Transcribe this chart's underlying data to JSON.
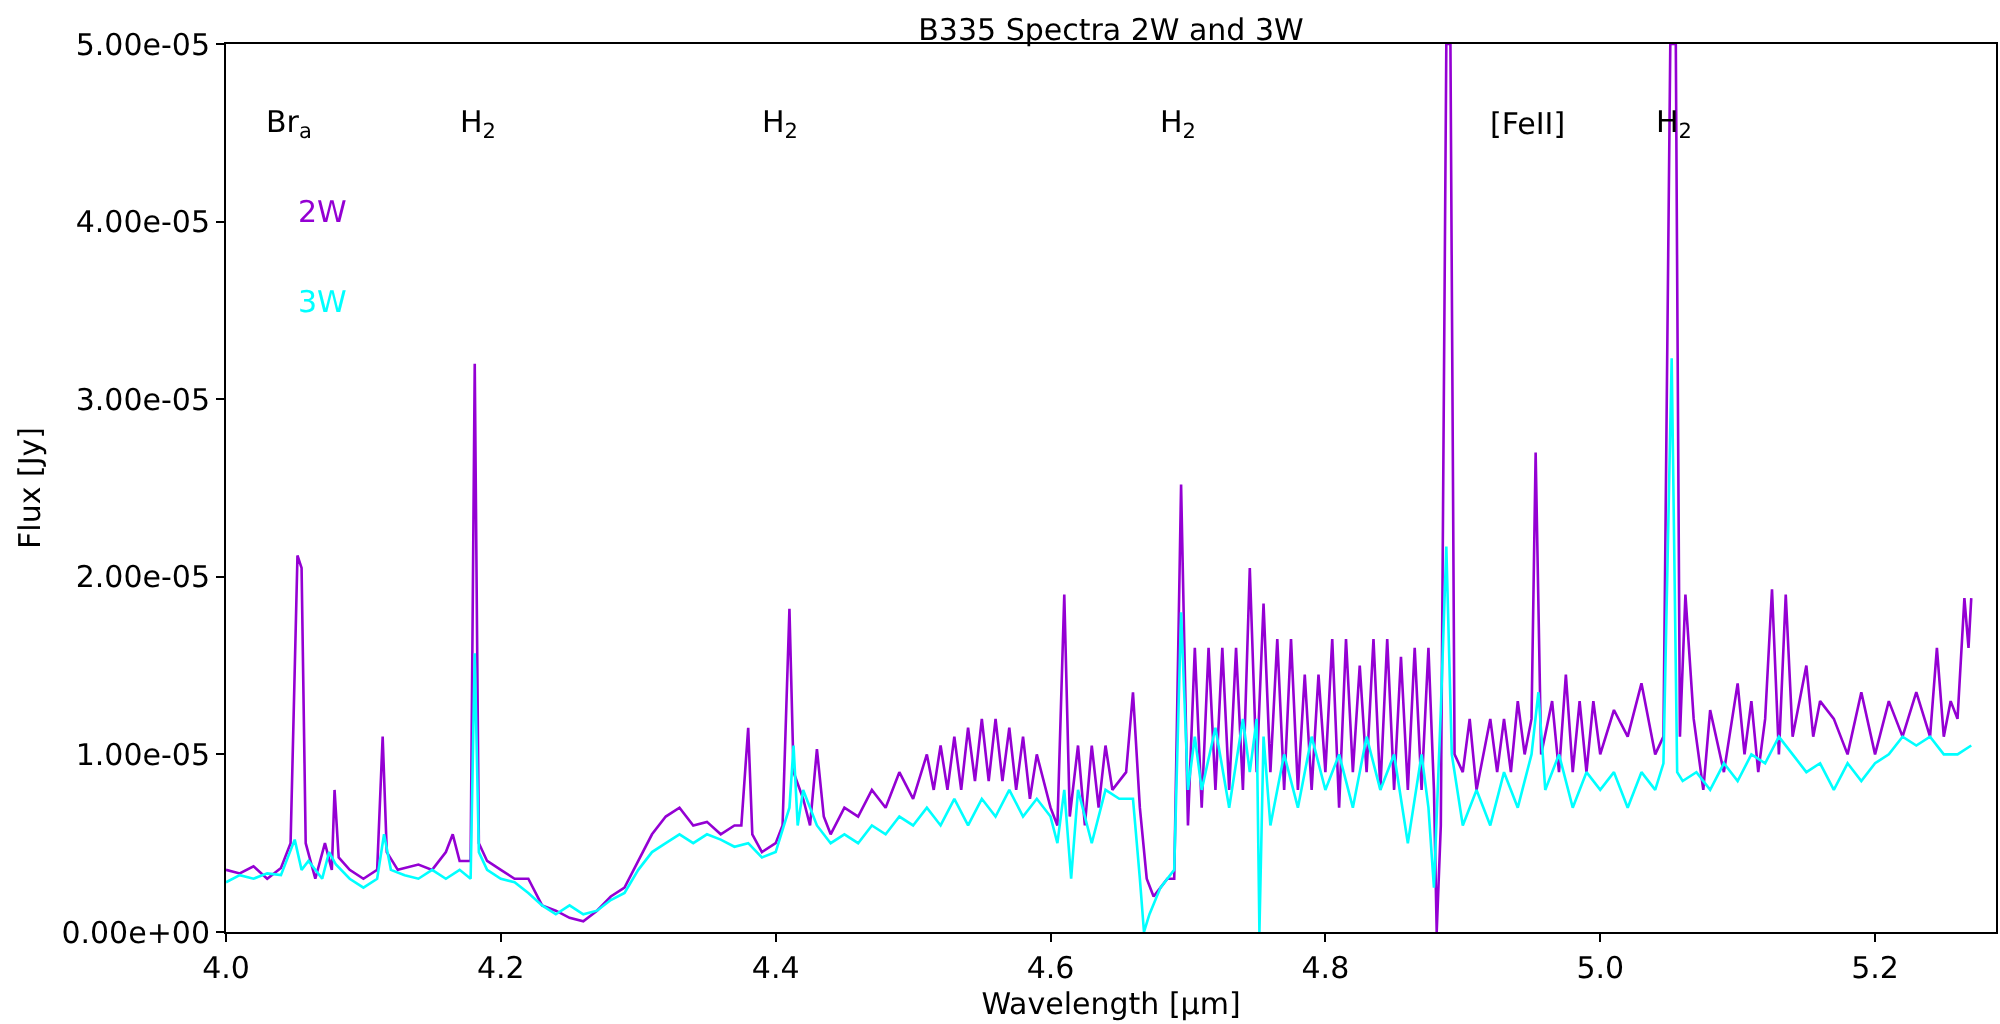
{
  "chart_data": {
    "type": "line",
    "title": "B335 Spectra 2W and 3W",
    "xlabel": "Wavelength [μm]",
    "ylabel": "Flux [Jy]",
    "xlim": [
      4.0,
      5.288
    ],
    "xticks": [
      {
        "value": 4.0,
        "label": "4.0"
      },
      {
        "value": 4.2,
        "label": "4.2"
      },
      {
        "value": 4.4,
        "label": "4.4"
      },
      {
        "value": 4.6,
        "label": "4.6"
      },
      {
        "value": 4.8,
        "label": "4.8"
      },
      {
        "value": 5.0,
        "label": "5.0"
      },
      {
        "value": 5.2,
        "label": "5.2"
      }
    ],
    "ylim": [
      0,
      5e-05
    ],
    "yticks": [
      {
        "value": 0,
        "label": "0.00e+00"
      },
      {
        "value": 1e-05,
        "label": "1.00e-05"
      },
      {
        "value": 2e-05,
        "label": "2.00e-05"
      },
      {
        "value": 3e-05,
        "label": "3.00e-05"
      },
      {
        "value": 4e-05,
        "label": "4.00e-05"
      },
      {
        "value": 5e-05,
        "label": "5.00e-05"
      }
    ],
    "legend": "top left",
    "marker": "none",
    "line_style": "solid",
    "annotations": [
      "Br$_{a}$",
      "H$_{2}$",
      "H$_{2}$",
      "H$_{2}$",
      "[FeII]",
      "H$_{2}$"
    ],
    "series": [
      {
        "name": "2W",
        "color": "#9400d3",
        "x": [
          4.0,
          4.01,
          4.02,
          4.03,
          4.04,
          4.047,
          4.052,
          4.055,
          4.058,
          4.065,
          4.072,
          4.077,
          4.079,
          4.082,
          4.09,
          4.1,
          4.11,
          4.114,
          4.117,
          4.125,
          4.14,
          4.15,
          4.16,
          4.165,
          4.17,
          4.178,
          4.181,
          4.184,
          4.19,
          4.2,
          4.21,
          4.22,
          4.23,
          4.24,
          4.25,
          4.26,
          4.27,
          4.28,
          4.29,
          4.3,
          4.31,
          4.32,
          4.33,
          4.34,
          4.35,
          4.36,
          4.37,
          4.375,
          4.38,
          4.383,
          4.39,
          4.4,
          4.405,
          4.41,
          4.413,
          4.42,
          4.425,
          4.43,
          4.435,
          4.44,
          4.45,
          4.46,
          4.47,
          4.48,
          4.49,
          4.5,
          4.51,
          4.515,
          4.52,
          4.525,
          4.53,
          4.535,
          4.54,
          4.545,
          4.55,
          4.555,
          4.56,
          4.565,
          4.57,
          4.575,
          4.58,
          4.585,
          4.59,
          4.6,
          4.605,
          4.61,
          4.614,
          4.62,
          4.625,
          4.63,
          4.635,
          4.64,
          4.645,
          4.655,
          4.66,
          4.665,
          4.67,
          4.675,
          4.68,
          4.685,
          4.69,
          4.695,
          4.7,
          4.705,
          4.71,
          4.715,
          4.72,
          4.725,
          4.73,
          4.735,
          4.74,
          4.745,
          4.75,
          4.755,
          4.76,
          4.765,
          4.77,
          4.775,
          4.78,
          4.785,
          4.79,
          4.795,
          4.8,
          4.805,
          4.81,
          4.815,
          4.82,
          4.825,
          4.83,
          4.835,
          4.84,
          4.845,
          4.85,
          4.855,
          4.86,
          4.865,
          4.87,
          4.875,
          4.879,
          4.881,
          4.884,
          4.888,
          4.891,
          4.894,
          4.9,
          4.905,
          4.91,
          4.92,
          4.925,
          4.93,
          4.935,
          4.94,
          4.945,
          4.95,
          4.953,
          4.957,
          4.965,
          4.97,
          4.975,
          4.98,
          4.985,
          4.99,
          4.995,
          5.0,
          5.01,
          5.02,
          5.03,
          5.04,
          5.046,
          5.051,
          5.055,
          5.058,
          5.062,
          5.068,
          5.075,
          5.08,
          5.09,
          5.1,
          5.105,
          5.11,
          5.115,
          5.12,
          5.125,
          5.13,
          5.135,
          5.14,
          5.15,
          5.155,
          5.16,
          5.17,
          5.18,
          5.19,
          5.2,
          5.21,
          5.22,
          5.23,
          5.24,
          5.245,
          5.25,
          5.255,
          5.26,
          5.265,
          5.268,
          5.27
        ],
        "values": [
          3.5e-06,
          3.3e-06,
          3.7e-06,
          3e-06,
          3.6e-06,
          5e-06,
          2.12e-05,
          2.05e-05,
          5e-06,
          3e-06,
          5e-06,
          3.5e-06,
          8e-06,
          4.2e-06,
          3.5e-06,
          3e-06,
          3.5e-06,
          1.1e-05,
          4.5e-06,
          3.5e-06,
          3.8e-06,
          3.5e-06,
          4.5e-06,
          5.5e-06,
          4e-06,
          4e-06,
          3.2e-05,
          5e-06,
          4e-06,
          3.5e-06,
          3e-06,
          3e-06,
          1.5e-06,
          1.2e-06,
          8e-07,
          6e-07,
          1.2e-06,
          2e-06,
          2.5e-06,
          4e-06,
          5.5e-06,
          6.5e-06,
          7e-06,
          6e-06,
          6.2e-06,
          5.5e-06,
          6e-06,
          6e-06,
          1.15e-05,
          5.5e-06,
          4.5e-06,
          5e-06,
          6e-06,
          1.82e-05,
          9e-06,
          7.5e-06,
          6e-06,
          1.03e-05,
          6.5e-06,
          5.5e-06,
          7e-06,
          6.5e-06,
          8e-06,
          7e-06,
          9e-06,
          7.5e-06,
          1e-05,
          8e-06,
          1.05e-05,
          8e-06,
          1.1e-05,
          8e-06,
          1.15e-05,
          8.5e-06,
          1.2e-05,
          8.5e-06,
          1.2e-05,
          8.5e-06,
          1.15e-05,
          8e-06,
          1.1e-05,
          7.5e-06,
          1e-05,
          7e-06,
          6e-06,
          1.9e-05,
          6.5e-06,
          1.05e-05,
          6e-06,
          1.05e-05,
          7e-06,
          1.05e-05,
          8e-06,
          9e-06,
          1.35e-05,
          7e-06,
          3e-06,
          2e-06,
          2.5e-06,
          3e-06,
          3e-06,
          2.52e-05,
          6e-06,
          1.6e-05,
          7e-06,
          1.6e-05,
          8e-06,
          1.6e-05,
          8e-06,
          1.6e-05,
          8e-06,
          2.05e-05,
          9e-06,
          1.85e-05,
          9e-06,
          1.65e-05,
          8e-06,
          1.65e-05,
          8e-06,
          1.45e-05,
          8e-06,
          1.45e-05,
          9e-06,
          1.65e-05,
          7e-06,
          1.65e-05,
          9e-06,
          1.5e-05,
          9e-06,
          1.65e-05,
          8e-06,
          1.65e-05,
          8e-06,
          1.55e-05,
          8e-06,
          1.6e-05,
          8e-06,
          1.6e-05,
          8e-06,
          0.0,
          6e-06,
          5e-05,
          5e-05,
          1e-05,
          9e-06,
          1.2e-05,
          8e-06,
          1.2e-05,
          9e-06,
          1.2e-05,
          9e-06,
          1.3e-05,
          1e-05,
          1.2e-05,
          2.7e-05,
          1e-05,
          1.3e-05,
          9e-06,
          1.45e-05,
          9e-06,
          1.3e-05,
          9e-06,
          1.3e-05,
          1e-05,
          1.25e-05,
          1.1e-05,
          1.4e-05,
          1e-05,
          1.1e-05,
          5e-05,
          5e-05,
          1.1e-05,
          1.9e-05,
          1.2e-05,
          8e-06,
          1.25e-05,
          9e-06,
          1.4e-05,
          1e-05,
          1.3e-05,
          9e-06,
          1.2e-05,
          1.93e-05,
          1e-05,
          1.9e-05,
          1.1e-05,
          1.5e-05,
          1.1e-05,
          1.3e-05,
          1.2e-05,
          1e-05,
          1.35e-05,
          1e-05,
          1.3e-05,
          1.1e-05,
          1.35e-05,
          1.1e-05,
          1.6e-05,
          1.1e-05,
          1.3e-05,
          1.2e-05,
          1.88e-05,
          1.6e-05,
          1.88e-05
        ]
      },
      {
        "name": "3W",
        "color": "#00ffff",
        "x": [
          4.0,
          4.01,
          4.02,
          4.03,
          4.04,
          4.05,
          4.055,
          4.06,
          4.07,
          4.075,
          4.08,
          4.09,
          4.1,
          4.11,
          4.115,
          4.12,
          4.13,
          4.14,
          4.15,
          4.16,
          4.17,
          4.178,
          4.181,
          4.184,
          4.19,
          4.2,
          4.21,
          4.22,
          4.23,
          4.24,
          4.25,
          4.26,
          4.27,
          4.28,
          4.29,
          4.3,
          4.31,
          4.32,
          4.33,
          4.34,
          4.35,
          4.36,
          4.37,
          4.38,
          4.39,
          4.4,
          4.41,
          4.413,
          4.416,
          4.42,
          4.43,
          4.44,
          4.45,
          4.46,
          4.47,
          4.48,
          4.49,
          4.5,
          4.51,
          4.52,
          4.53,
          4.54,
          4.55,
          4.56,
          4.57,
          4.58,
          4.59,
          4.6,
          4.605,
          4.61,
          4.615,
          4.62,
          4.63,
          4.64,
          4.65,
          4.66,
          4.665,
          4.668,
          4.672,
          4.68,
          4.69,
          4.695,
          4.7,
          4.705,
          4.71,
          4.72,
          4.73,
          4.74,
          4.745,
          4.75,
          4.752,
          4.755,
          4.76,
          4.77,
          4.78,
          4.79,
          4.8,
          4.81,
          4.82,
          4.83,
          4.84,
          4.85,
          4.86,
          4.87,
          4.875,
          4.879,
          4.884,
          4.888,
          4.892,
          4.9,
          4.91,
          4.92,
          4.93,
          4.94,
          4.95,
          4.955,
          4.96,
          4.97,
          4.98,
          4.99,
          5.0,
          5.01,
          5.02,
          5.03,
          5.04,
          5.046,
          5.052,
          5.056,
          5.06,
          5.07,
          5.08,
          5.09,
          5.1,
          5.11,
          5.12,
          5.13,
          5.14,
          5.15,
          5.16,
          5.17,
          5.18,
          5.19,
          5.2,
          5.21,
          5.22,
          5.23,
          5.24,
          5.25,
          5.26,
          5.27
        ],
        "values": [
          2.8e-06,
          3.2e-06,
          3e-06,
          3.3e-06,
          3.2e-06,
          5.2e-06,
          3.5e-06,
          4e-06,
          3e-06,
          4.5e-06,
          3.8e-06,
          3e-06,
          2.5e-06,
          3e-06,
          5.5e-06,
          3.5e-06,
          3.2e-06,
          3e-06,
          3.5e-06,
          3e-06,
          3.5e-06,
          3e-06,
          1.57e-05,
          4.5e-06,
          3.5e-06,
          3e-06,
          2.8e-06,
          2.2e-06,
          1.5e-06,
          1e-06,
          1.5e-06,
          1e-06,
          1.2e-06,
          1.8e-06,
          2.2e-06,
          3.5e-06,
          4.5e-06,
          5e-06,
          5.5e-06,
          5e-06,
          5.5e-06,
          5.2e-06,
          4.8e-06,
          5e-06,
          4.2e-06,
          4.5e-06,
          7e-06,
          1.05e-05,
          6e-06,
          8e-06,
          6e-06,
          5e-06,
          5.5e-06,
          5e-06,
          6e-06,
          5.5e-06,
          6.5e-06,
          6e-06,
          7e-06,
          6e-06,
          7.5e-06,
          6e-06,
          7.5e-06,
          6.5e-06,
          8e-06,
          6.5e-06,
          7.5e-06,
          6.5e-06,
          5e-06,
          8e-06,
          3e-06,
          8e-06,
          5e-06,
          8e-06,
          7.5e-06,
          7.5e-06,
          3e-06,
          0.0,
          1e-06,
          2.5e-06,
          3.5e-06,
          1.8e-05,
          8e-06,
          1.1e-05,
          8e-06,
          1.15e-05,
          7e-06,
          1.2e-05,
          9e-06,
          1.2e-05,
          0.0,
          1.1e-05,
          6e-06,
          1e-05,
          7e-06,
          1.1e-05,
          8e-06,
          1e-05,
          7e-06,
          1.1e-05,
          8e-06,
          1e-05,
          5e-06,
          1e-05,
          7e-06,
          2.5e-06,
          1.25e-05,
          2.17e-05,
          1e-05,
          6e-06,
          8e-06,
          6e-06,
          9e-06,
          7e-06,
          1e-05,
          1.35e-05,
          8e-06,
          1e-05,
          7e-06,
          9e-06,
          8e-06,
          9e-06,
          7e-06,
          9e-06,
          8e-06,
          9.5e-06,
          3.23e-05,
          9e-06,
          8.5e-06,
          9e-06,
          8e-06,
          9.5e-06,
          8.5e-06,
          1e-05,
          9.5e-06,
          1.1e-05,
          1e-05,
          9e-06,
          9.5e-06,
          8e-06,
          9.5e-06,
          8.5e-06,
          9.5e-06,
          1e-05,
          1.1e-05,
          1.05e-05,
          1.1e-05,
          1e-05,
          1e-05,
          1.05e-05
        ]
      }
    ]
  }
}
